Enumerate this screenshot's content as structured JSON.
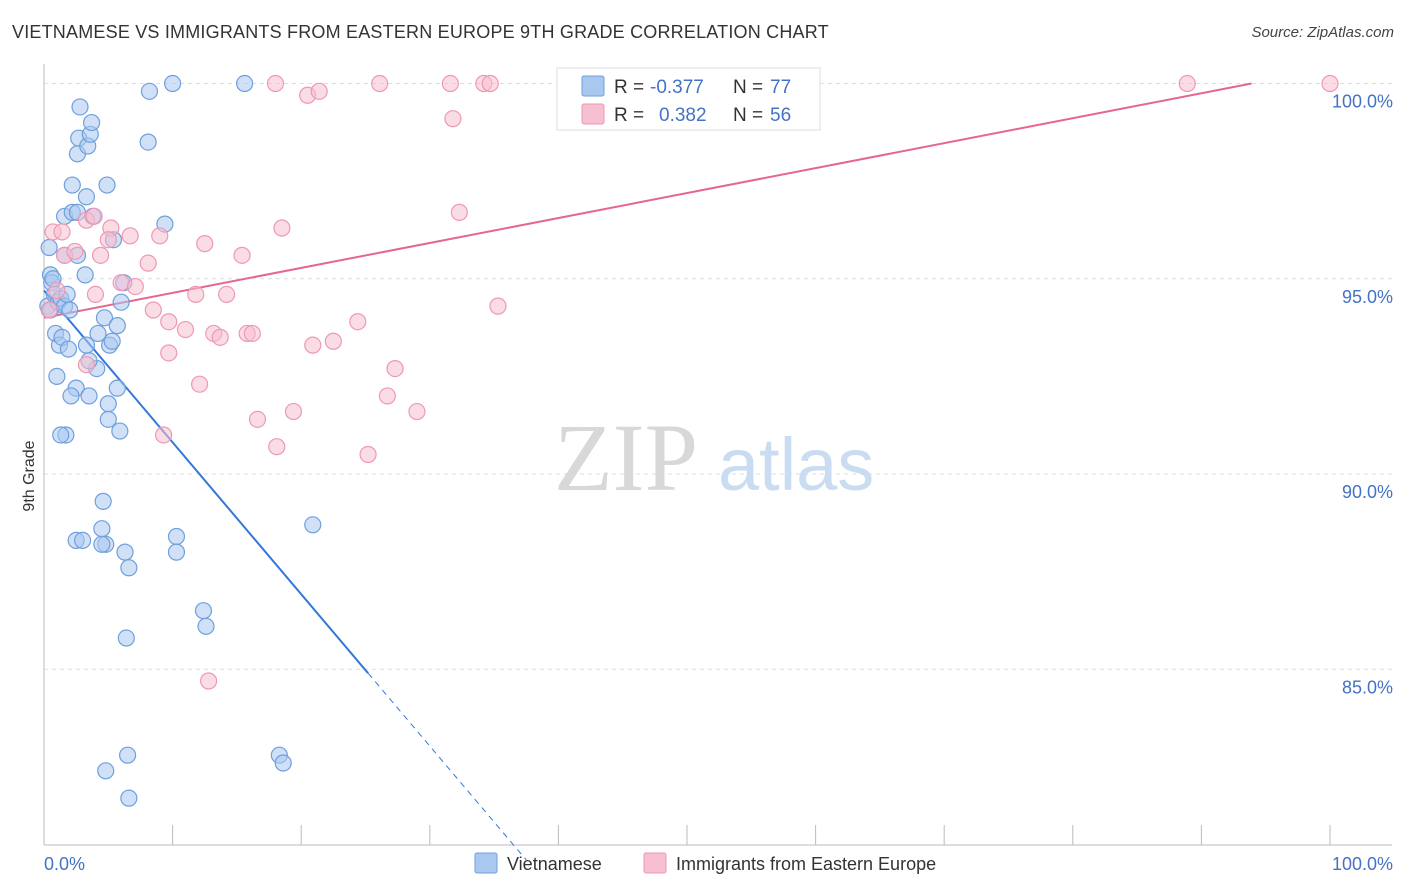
{
  "title": "VIETNAMESE VS IMMIGRANTS FROM EASTERN EUROPE 9TH GRADE CORRELATION CHART",
  "source": "Source: ZipAtlas.com",
  "watermark": {
    "zip": "ZIP",
    "atlas": "atlas"
  },
  "colors": {
    "blue_fill": "#a9c8f0",
    "blue_stroke": "#6f9fdc",
    "blue_line": "#3377d9",
    "pink_fill": "#f6c0d0",
    "pink_stroke": "#ef98b4",
    "pink_line": "#e5668e",
    "axis_text": "#4472c4",
    "grid": "#dddddd"
  },
  "legend": {
    "rows": [
      {
        "r_label": "R =",
        "r_value": "-0.377",
        "n_label": "N =",
        "n_value": "77"
      },
      {
        "r_label": "R =",
        "r_value": "0.382",
        "n_label": "N =",
        "n_value": "56"
      }
    ]
  },
  "chart_data": {
    "type": "scatter",
    "title": "VIETNAMESE VS IMMIGRANTS FROM EASTERN EUROPE 9TH GRADE CORRELATION CHART",
    "xlabel": "",
    "ylabel": "9th Grade",
    "xlim": [
      0,
      100
    ],
    "ylim": [
      80.5,
      100.5
    ],
    "x_tick_labels": [
      "0.0%",
      "100.0%"
    ],
    "y_ticks": [
      {
        "value": 85,
        "label": "85.0%"
      },
      {
        "value": 90,
        "label": "90.0%"
      },
      {
        "value": 95,
        "label": "95.0%"
      },
      {
        "value": 100,
        "label": "100.0%"
      }
    ],
    "series": [
      {
        "name": "Vietnamese",
        "color": "blue",
        "r": -0.377,
        "n": 77,
        "trend": {
          "x0": 0.0,
          "y0": 94.7,
          "x1": 25.2,
          "y1": 84.9,
          "dash_x_end": 37.5
        },
        "points": [
          [
            0.3,
            94.3
          ],
          [
            0.5,
            95.1
          ],
          [
            0.6,
            94.9
          ],
          [
            0.8,
            94.6
          ],
          [
            0.9,
            93.6
          ],
          [
            0.4,
            95.8
          ],
          [
            0.7,
            95.0
          ],
          [
            0.5,
            94.2
          ],
          [
            1.1,
            94.4
          ],
          [
            1.3,
            94.5
          ],
          [
            1.6,
            94.3
          ],
          [
            1.8,
            94.6
          ],
          [
            1.2,
            93.3
          ],
          [
            1.4,
            93.5
          ],
          [
            1.9,
            93.2
          ],
          [
            1.6,
            96.6
          ],
          [
            2.2,
            96.7
          ],
          [
            2.6,
            96.7
          ],
          [
            3.3,
            97.1
          ],
          [
            3.8,
            96.6
          ],
          [
            2.2,
            97.4
          ],
          [
            4.9,
            97.4
          ],
          [
            1.6,
            95.6
          ],
          [
            2.6,
            95.6
          ],
          [
            3.2,
            95.1
          ],
          [
            2.7,
            98.6
          ],
          [
            2.6,
            98.2
          ],
          [
            3.4,
            98.4
          ],
          [
            3.6,
            98.7
          ],
          [
            3.7,
            99.0
          ],
          [
            2.8,
            99.4
          ],
          [
            8.2,
            99.8
          ],
          [
            10.0,
            100.0
          ],
          [
            15.6,
            100.0
          ],
          [
            8.1,
            98.5
          ],
          [
            9.4,
            96.4
          ],
          [
            5.4,
            96.0
          ],
          [
            6.2,
            94.9
          ],
          [
            6.0,
            94.4
          ],
          [
            4.7,
            94.0
          ],
          [
            5.7,
            93.8
          ],
          [
            4.2,
            93.6
          ],
          [
            3.3,
            93.3
          ],
          [
            5.1,
            93.3
          ],
          [
            5.3,
            93.4
          ],
          [
            4.1,
            92.7
          ],
          [
            3.5,
            92.9
          ],
          [
            5.7,
            92.2
          ],
          [
            2.5,
            92.2
          ],
          [
            2.1,
            92.0
          ],
          [
            3.5,
            92.0
          ],
          [
            1.0,
            92.5
          ],
          [
            5.0,
            91.8
          ],
          [
            5.0,
            91.4
          ],
          [
            5.9,
            91.1
          ],
          [
            1.7,
            91.0
          ],
          [
            1.3,
            91.0
          ],
          [
            4.6,
            89.3
          ],
          [
            4.5,
            88.6
          ],
          [
            2.5,
            88.3
          ],
          [
            3.0,
            88.3
          ],
          [
            4.8,
            88.2
          ],
          [
            4.5,
            88.2
          ],
          [
            6.3,
            88.0
          ],
          [
            6.6,
            87.6
          ],
          [
            10.3,
            88.4
          ],
          [
            10.3,
            88.0
          ],
          [
            20.9,
            88.7
          ],
          [
            12.4,
            86.5
          ],
          [
            12.6,
            86.1
          ],
          [
            6.4,
            85.8
          ],
          [
            18.3,
            82.8
          ],
          [
            18.6,
            82.6
          ],
          [
            6.5,
            82.8
          ],
          [
            4.8,
            82.4
          ],
          [
            6.6,
            81.7
          ],
          [
            2.0,
            94.2
          ]
        ]
      },
      {
        "name": "Immigrants from Eastern Europe",
        "color": "pink",
        "r": 0.382,
        "n": 56,
        "trend": {
          "x0": 0.0,
          "y0": 94.0,
          "x1": 93.9,
          "y1": 100.0
        },
        "points": [
          [
            0.4,
            94.2
          ],
          [
            0.7,
            96.2
          ],
          [
            1.6,
            95.6
          ],
          [
            2.4,
            95.7
          ],
          [
            1.4,
            96.2
          ],
          [
            3.3,
            96.5
          ],
          [
            3.9,
            96.6
          ],
          [
            5.2,
            96.3
          ],
          [
            5.0,
            96.0
          ],
          [
            4.4,
            95.6
          ],
          [
            6.7,
            96.1
          ],
          [
            8.1,
            95.4
          ],
          [
            9.0,
            96.1
          ],
          [
            12.5,
            95.9
          ],
          [
            15.4,
            95.6
          ],
          [
            18.5,
            96.3
          ],
          [
            6.0,
            94.9
          ],
          [
            7.1,
            94.8
          ],
          [
            8.5,
            94.2
          ],
          [
            11.8,
            94.6
          ],
          [
            14.2,
            94.6
          ],
          [
            9.7,
            93.9
          ],
          [
            11.0,
            93.7
          ],
          [
            13.2,
            93.6
          ],
          [
            13.7,
            93.5
          ],
          [
            15.8,
            93.6
          ],
          [
            16.2,
            93.6
          ],
          [
            20.9,
            93.3
          ],
          [
            22.5,
            93.4
          ],
          [
            24.4,
            93.9
          ],
          [
            9.7,
            93.1
          ],
          [
            3.3,
            92.8
          ],
          [
            12.1,
            92.3
          ],
          [
            27.3,
            92.7
          ],
          [
            26.7,
            92.0
          ],
          [
            16.6,
            91.4
          ],
          [
            19.4,
            91.6
          ],
          [
            29.0,
            91.6
          ],
          [
            9.3,
            91.0
          ],
          [
            18.1,
            90.7
          ],
          [
            25.2,
            90.5
          ],
          [
            12.8,
            84.7
          ],
          [
            18.0,
            100.0
          ],
          [
            20.5,
            99.7
          ],
          [
            21.4,
            99.8
          ],
          [
            26.1,
            100.0
          ],
          [
            31.6,
            100.0
          ],
          [
            34.2,
            100.0
          ],
          [
            34.7,
            100.0
          ],
          [
            31.8,
            99.1
          ],
          [
            32.3,
            96.7
          ],
          [
            35.3,
            94.3
          ],
          [
            88.9,
            100.0
          ],
          [
            100.0,
            100.0
          ],
          [
            1.0,
            94.7
          ],
          [
            4.0,
            94.6
          ]
        ]
      }
    ]
  }
}
